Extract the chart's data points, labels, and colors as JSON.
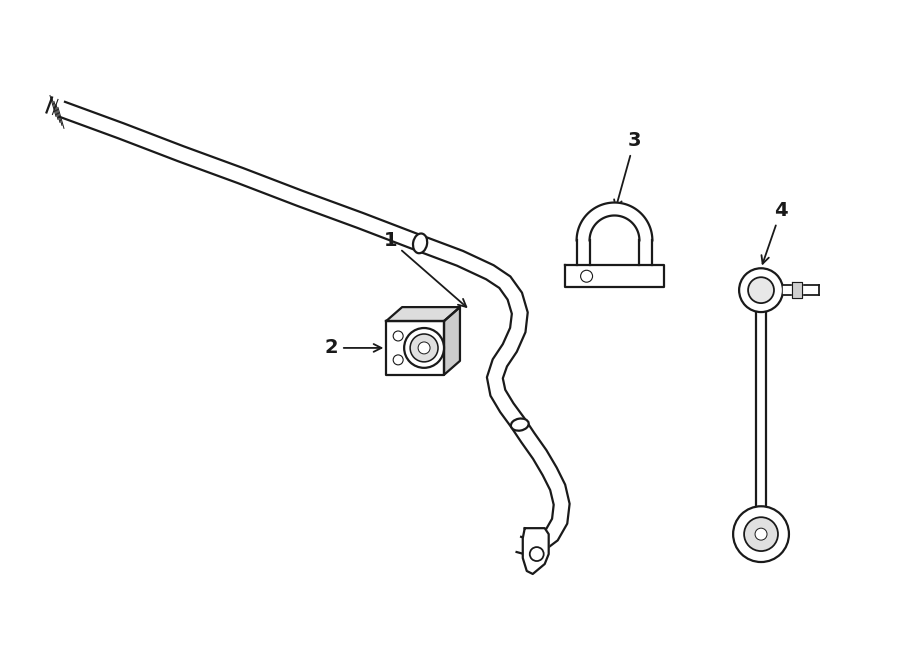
{
  "bg_color": "#ffffff",
  "line_color": "#1a1a1a",
  "lw": 1.6,
  "fig_width": 9.0,
  "fig_height": 6.61,
  "dpi": 100
}
